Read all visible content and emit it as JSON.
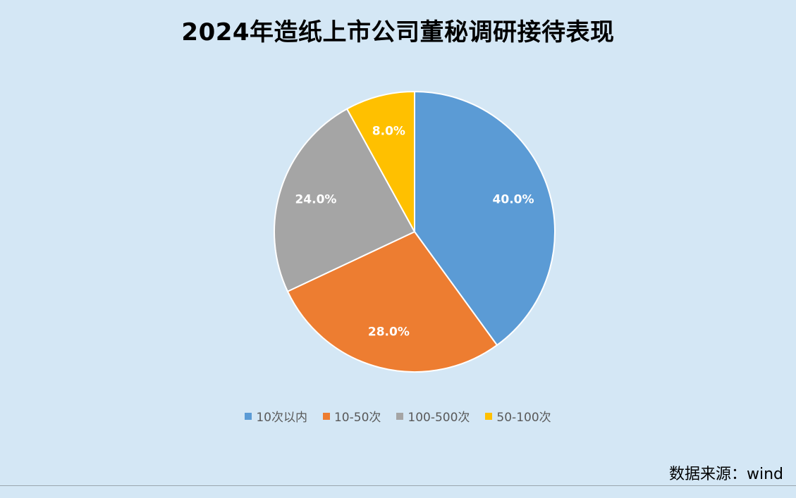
{
  "chart_data": {
    "type": "pie",
    "title": "2024年造纸上市公司董秘调研接待表现",
    "categories": [
      "10次以内",
      "10-50次",
      "100-500次",
      "50-100次"
    ],
    "values": [
      40.0,
      28.0,
      24.0,
      8.0
    ],
    "value_labels": [
      "40.0%",
      "28.0%",
      "24.0%",
      "8.0%"
    ],
    "colors": [
      "#5b9bd5",
      "#ed7d31",
      "#a5a5a5",
      "#ffc000"
    ],
    "start_angle": "12 o'clock",
    "direction": "clockwise",
    "legend_position": "bottom"
  },
  "source_note": "数据来源：wind"
}
